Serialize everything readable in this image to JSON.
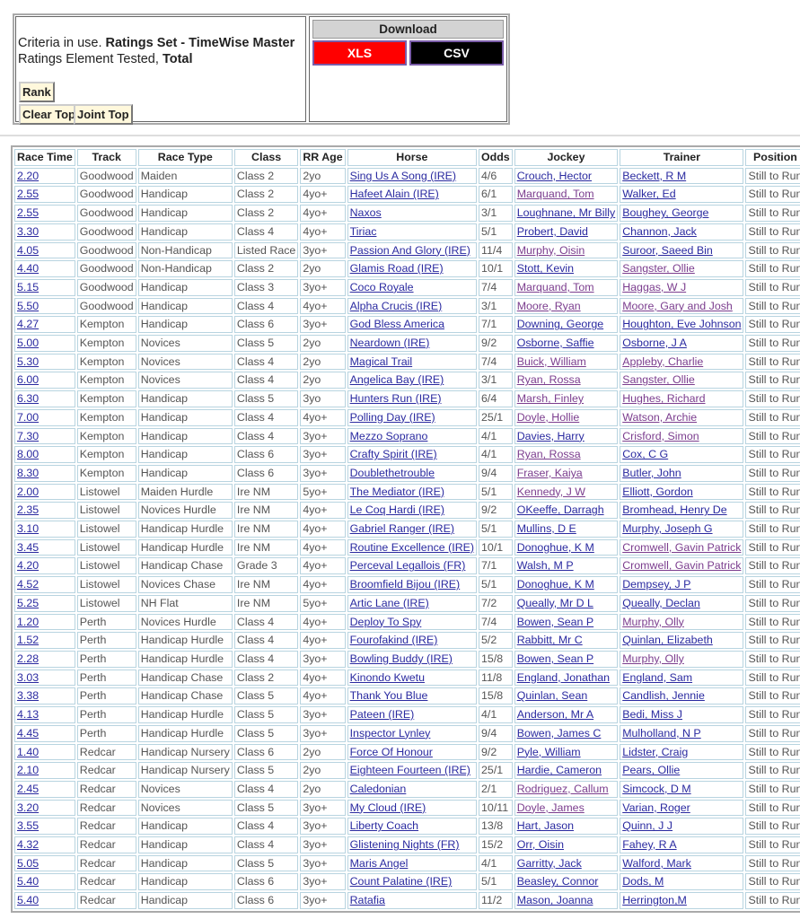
{
  "criteria": {
    "prefix": "Criteria in use. ",
    "ratings_set": "Ratings Set - TimeWise Master",
    "element_prefix": "Ratings Element Tested, ",
    "element": "Total"
  },
  "buttons": {
    "rank": "Rank",
    "clear_top": "Clear Top",
    "joint_top": "Joint Top"
  },
  "download": {
    "title": "Download",
    "xls": "XLS",
    "csv": "CSV",
    "xls_color": "#ff0000",
    "csv_color": "#000000"
  },
  "colors": {
    "link": "#2a2aa0",
    "visited": "#7b3d8e"
  },
  "table": {
    "headers": [
      "Race Time",
      "Track",
      "Race Type",
      "Class",
      "RR Age",
      "Horse",
      "Odds",
      "Jockey",
      "Trainer",
      "Position"
    ],
    "rows": [
      {
        "t": "2.20",
        "tr": "Goodwood",
        "rt": "Maiden",
        "c": "Class 2",
        "a": "2yo",
        "h": "Sing Us A Song (IRE)",
        "o": "4/6",
        "j": "Crouch, Hector",
        "tn": "Beckett, R M",
        "p": "Still to Run"
      },
      {
        "t": "2.55",
        "tr": "Goodwood",
        "rt": "Handicap",
        "c": "Class 2",
        "a": "4yo+",
        "h": "Hafeet Alain (IRE)",
        "o": "6/1",
        "j": "Marquand, Tom",
        "jv": true,
        "tn": "Walker, Ed",
        "p": "Still to Run"
      },
      {
        "t": "2.55",
        "tr": "Goodwood",
        "rt": "Handicap",
        "c": "Class 2",
        "a": "4yo+",
        "h": "Naxos",
        "o": "3/1",
        "j": "Loughnane, Mr Billy",
        "tn": "Boughey, George",
        "p": "Still to Run"
      },
      {
        "t": "3.30",
        "tr": "Goodwood",
        "rt": "Handicap",
        "c": "Class 4",
        "a": "4yo+",
        "h": "Tiriac",
        "o": "5/1",
        "j": "Probert, David",
        "tn": "Channon, Jack",
        "p": "Still to Run"
      },
      {
        "t": "4.05",
        "tr": "Goodwood",
        "rt": "Non-Handicap",
        "c": "Listed Race",
        "a": "3yo+",
        "h": "Passion And Glory (IRE)",
        "o": "11/4",
        "j": "Murphy, Oisin",
        "jv": true,
        "tn": "Suroor, Saeed Bin",
        "p": "Still to Run"
      },
      {
        "t": "4.40",
        "tr": "Goodwood",
        "rt": "Non-Handicap",
        "c": "Class 2",
        "a": "2yo",
        "h": "Glamis Road (IRE)",
        "o": "10/1",
        "j": "Stott, Kevin",
        "tn": "Sangster, Ollie",
        "tv": true,
        "p": "Still to Run"
      },
      {
        "t": "5.15",
        "tr": "Goodwood",
        "rt": "Handicap",
        "c": "Class 3",
        "a": "3yo+",
        "h": "Coco Royale",
        "o": "7/4",
        "j": "Marquand, Tom",
        "jv": true,
        "tn": "Haggas, W J",
        "tv": true,
        "p": "Still to Run"
      },
      {
        "t": "5.50",
        "tr": "Goodwood",
        "rt": "Handicap",
        "c": "Class 4",
        "a": "4yo+",
        "h": "Alpha Crucis (IRE)",
        "o": "3/1",
        "j": "Moore, Ryan",
        "jv": true,
        "tn": "Moore, Gary and Josh",
        "tv": true,
        "p": "Still to Run"
      },
      {
        "t": "4.27",
        "tr": "Kempton",
        "rt": "Handicap",
        "c": "Class 6",
        "a": "3yo+",
        "h": "God Bless America",
        "o": "7/1",
        "j": "Downing, George",
        "tn": "Houghton, Eve Johnson",
        "p": "Still to Run"
      },
      {
        "t": "5.00",
        "tr": "Kempton",
        "rt": "Novices",
        "c": "Class 5",
        "a": "2yo",
        "h": "Neardown (IRE)",
        "o": "9/2",
        "j": "Osborne, Saffie",
        "tn": "Osborne, J A",
        "p": "Still to Run"
      },
      {
        "t": "5.30",
        "tr": "Kempton",
        "rt": "Novices",
        "c": "Class 4",
        "a": "2yo",
        "h": "Magical Trail",
        "o": "7/4",
        "j": "Buick, William",
        "jv": true,
        "tn": "Appleby, Charlie",
        "tv": true,
        "p": "Still to Run"
      },
      {
        "t": "6.00",
        "tr": "Kempton",
        "rt": "Novices",
        "c": "Class 4",
        "a": "2yo",
        "h": "Angelica Bay (IRE)",
        "o": "3/1",
        "j": "Ryan, Rossa",
        "jv": true,
        "tn": "Sangster, Ollie",
        "tv": true,
        "p": "Still to Run"
      },
      {
        "t": "6.30",
        "tr": "Kempton",
        "rt": "Handicap",
        "c": "Class 5",
        "a": "3yo",
        "h": "Hunters Run (IRE)",
        "o": "6/4",
        "j": "Marsh, Finley",
        "jv": true,
        "tn": "Hughes, Richard",
        "tv": true,
        "p": "Still to Run"
      },
      {
        "t": "7.00",
        "tr": "Kempton",
        "rt": "Handicap",
        "c": "Class 4",
        "a": "4yo+",
        "h": "Polling Day (IRE)",
        "o": "25/1",
        "j": "Doyle, Hollie",
        "jv": true,
        "tn": "Watson, Archie",
        "tv": true,
        "p": "Still to Run"
      },
      {
        "t": "7.30",
        "tr": "Kempton",
        "rt": "Handicap",
        "c": "Class 4",
        "a": "3yo+",
        "h": "Mezzo Soprano",
        "o": "4/1",
        "j": "Davies, Harry",
        "tn": "Crisford, Simon",
        "tv": true,
        "p": "Still to Run"
      },
      {
        "t": "8.00",
        "tr": "Kempton",
        "rt": "Handicap",
        "c": "Class 6",
        "a": "3yo+",
        "h": "Crafty Spirit (IRE)",
        "o": "4/1",
        "j": "Ryan, Rossa",
        "jv": true,
        "tn": "Cox, C G",
        "p": "Still to Run"
      },
      {
        "t": "8.30",
        "tr": "Kempton",
        "rt": "Handicap",
        "c": "Class 6",
        "a": "3yo+",
        "h": "Doublethetrouble",
        "o": "9/4",
        "j": "Fraser, Kaiya",
        "jv": true,
        "tn": "Butler, John",
        "p": "Still to Run"
      },
      {
        "t": "2.00",
        "tr": "Listowel",
        "rt": "Maiden Hurdle",
        "c": "Ire NM",
        "a": "5yo+",
        "h": "The Mediator (IRE)",
        "o": "5/1",
        "j": "Kennedy, J W",
        "jv": true,
        "tn": "Elliott, Gordon",
        "p": "Still to Run"
      },
      {
        "t": "2.35",
        "tr": "Listowel",
        "rt": "Novices Hurdle",
        "c": "Ire NM",
        "a": "4yo+",
        "h": "Le Coq Hardi (IRE)",
        "o": "9/2",
        "j": "OKeeffe, Darragh",
        "tn": "Bromhead, Henry De",
        "p": "Still to Run"
      },
      {
        "t": "3.10",
        "tr": "Listowel",
        "rt": "Handicap Hurdle",
        "c": "Ire NM",
        "a": "4yo+",
        "h": "Gabriel Ranger (IRE)",
        "o": "5/1",
        "j": "Mullins, D E",
        "tn": "Murphy, Joseph G",
        "p": "Still to Run"
      },
      {
        "t": "3.45",
        "tr": "Listowel",
        "rt": "Handicap Hurdle",
        "c": "Ire NM",
        "a": "4yo+",
        "h": "Routine Excellence (IRE)",
        "o": "10/1",
        "j": "Donoghue, K M",
        "tn": "Cromwell, Gavin Patrick",
        "tv": true,
        "p": "Still to Run"
      },
      {
        "t": "4.20",
        "tr": "Listowel",
        "rt": "Handicap Chase",
        "c": "Grade 3",
        "a": "4yo+",
        "h": "Perceval Legallois (FR)",
        "o": "7/1",
        "j": "Walsh, M P",
        "tn": "Cromwell, Gavin Patrick",
        "tv": true,
        "p": "Still to Run"
      },
      {
        "t": "4.52",
        "tr": "Listowel",
        "rt": "Novices Chase",
        "c": "Ire NM",
        "a": "4yo+",
        "h": "Broomfield Bijou (IRE)",
        "o": "5/1",
        "j": "Donoghue, K M",
        "tn": "Dempsey, J P",
        "p": "Still to Run"
      },
      {
        "t": "5.25",
        "tr": "Listowel",
        "rt": "NH Flat",
        "c": "Ire NM",
        "a": "5yo+",
        "h": "Artic Lane (IRE)",
        "o": "7/2",
        "j": "Queally, Mr D L",
        "tn": "Queally, Declan",
        "p": "Still to Run"
      },
      {
        "t": "1.20",
        "tr": "Perth",
        "rt": "Novices Hurdle",
        "c": "Class 4",
        "a": "4yo+",
        "h": "Deploy To Spy",
        "o": "7/4",
        "j": "Bowen, Sean P",
        "tn": "Murphy, Olly",
        "tv": true,
        "p": "Still to Run"
      },
      {
        "t": "1.52",
        "tr": "Perth",
        "rt": "Handicap Hurdle",
        "c": "Class 4",
        "a": "4yo+",
        "h": "Fourofakind (IRE)",
        "o": "5/2",
        "j": "Rabbitt, Mr C",
        "tn": "Quinlan, Elizabeth",
        "p": "Still to Run"
      },
      {
        "t": "2.28",
        "tr": "Perth",
        "rt": "Handicap Hurdle",
        "c": "Class 4",
        "a": "3yo+",
        "h": "Bowling Buddy (IRE)",
        "o": "15/8",
        "j": "Bowen, Sean P",
        "tn": "Murphy, Olly",
        "tv": true,
        "p": "Still to Run"
      },
      {
        "t": "3.03",
        "tr": "Perth",
        "rt": "Handicap Chase",
        "c": "Class 2",
        "a": "4yo+",
        "h": "Kinondo Kwetu",
        "o": "11/8",
        "j": "England, Jonathan",
        "tn": "England, Sam",
        "p": "Still to Run"
      },
      {
        "t": "3.38",
        "tr": "Perth",
        "rt": "Handicap Chase",
        "c": "Class 5",
        "a": "4yo+",
        "h": "Thank You Blue",
        "o": "15/8",
        "j": "Quinlan, Sean",
        "tn": "Candlish, Jennie",
        "p": "Still to Run"
      },
      {
        "t": "4.13",
        "tr": "Perth",
        "rt": "Handicap Hurdle",
        "c": "Class 5",
        "a": "3yo+",
        "h": "Pateen (IRE)",
        "o": "4/1",
        "j": "Anderson, Mr A",
        "tn": "Bedi, Miss J",
        "p": "Still to Run"
      },
      {
        "t": "4.45",
        "tr": "Perth",
        "rt": "Handicap Hurdle",
        "c": "Class 5",
        "a": "3yo+",
        "h": "Inspector Lynley",
        "o": "9/4",
        "j": "Bowen, James C",
        "tn": "Mulholland, N P",
        "p": "Still to Run"
      },
      {
        "t": "1.40",
        "tr": "Redcar",
        "rt": "Handicap Nursery",
        "c": "Class 6",
        "a": "2yo",
        "h": "Force Of Honour",
        "o": "9/2",
        "j": "Pyle, William",
        "tn": "Lidster, Craig",
        "p": "Still to Run"
      },
      {
        "t": "2.10",
        "tr": "Redcar",
        "rt": "Handicap Nursery",
        "c": "Class 5",
        "a": "2yo",
        "h": "Eighteen Fourteen (IRE)",
        "o": "25/1",
        "j": "Hardie, Cameron",
        "tn": "Pears, Ollie",
        "p": "Still to Run"
      },
      {
        "t": "2.45",
        "tr": "Redcar",
        "rt": "Novices",
        "c": "Class 4",
        "a": "2yo",
        "h": "Caledonian",
        "o": "2/1",
        "j": "Rodriguez, Callum",
        "jv": true,
        "tn": "Simcock, D M",
        "p": "Still to Run"
      },
      {
        "t": "3.20",
        "tr": "Redcar",
        "rt": "Novices",
        "c": "Class 5",
        "a": "3yo+",
        "h": "My Cloud (IRE)",
        "o": "10/11",
        "j": "Doyle, James",
        "jv": true,
        "tn": "Varian, Roger",
        "p": "Still to Run"
      },
      {
        "t": "3.55",
        "tr": "Redcar",
        "rt": "Handicap",
        "c": "Class 4",
        "a": "3yo+",
        "h": "Liberty Coach",
        "o": "13/8",
        "j": "Hart, Jason",
        "tn": "Quinn, J J",
        "p": "Still to Run"
      },
      {
        "t": "4.32",
        "tr": "Redcar",
        "rt": "Handicap",
        "c": "Class 4",
        "a": "3yo+",
        "h": "Glistening Nights (FR)",
        "o": "15/2",
        "j": "Orr, Oisin",
        "tn": "Fahey, R A",
        "p": "Still to Run"
      },
      {
        "t": "5.05",
        "tr": "Redcar",
        "rt": "Handicap",
        "c": "Class 5",
        "a": "3yo+",
        "h": "Maris Angel",
        "o": "4/1",
        "j": "Garritty, Jack",
        "tn": "Walford, Mark",
        "p": "Still to Run"
      },
      {
        "t": "5.40",
        "tr": "Redcar",
        "rt": "Handicap",
        "c": "Class 6",
        "a": "3yo+",
        "h": "Count Palatine (IRE)",
        "o": "5/1",
        "j": "Beasley, Connor",
        "tn": "Dods, M",
        "p": "Still to Run"
      },
      {
        "t": "5.40",
        "tr": "Redcar",
        "rt": "Handicap",
        "c": "Class 6",
        "a": "3yo+",
        "h": "Ratafia",
        "o": "11/2",
        "j": "Mason, Joanna",
        "tn": "Herrington,M",
        "p": "Still to Run"
      }
    ]
  }
}
